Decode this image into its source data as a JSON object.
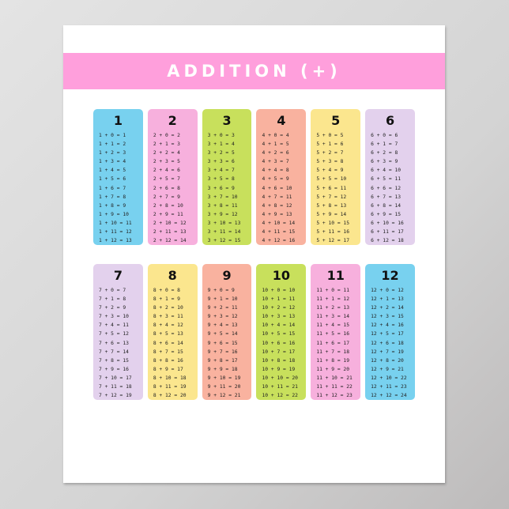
{
  "title": "ADDITION (+)",
  "colors": {
    "banner": "#ff9fdc",
    "cyan": "#78d1ef",
    "pink": "#f7b0dd",
    "lime": "#c8e05c",
    "salmon": "#f9b29f",
    "yellow": "#fbe68e",
    "lavender": "#e3d1ed"
  },
  "rows": [
    [
      {
        "number": "1",
        "color": "#78d1ef",
        "equations": [
          "1 + 0 = 1",
          "1 + 1 = 2",
          "1 + 2 = 3",
          "1 + 3 = 4",
          "1 + 4 = 5",
          "1 + 5 = 6",
          "1 + 6 = 7",
          "1 + 7 = 8",
          "1 + 8 = 9",
          "1 + 9 = 10",
          "1 + 10 = 11",
          "1 + 11 = 12",
          "1 + 12 = 13"
        ]
      },
      {
        "number": "2",
        "color": "#f7b0dd",
        "equations": [
          "2 + 0 = 2",
          "2 + 1 = 3",
          "2 + 2 = 4",
          "2 + 3 = 5",
          "2 + 4 = 6",
          "2 + 5 = 7",
          "2 + 6 = 8",
          "2 + 7 = 9",
          "2 + 8 = 10",
          "2 + 9 = 11",
          "2 + 10 = 12",
          "2 + 11 = 13",
          "2 + 12 = 14"
        ]
      },
      {
        "number": "3",
        "color": "#c8e05c",
        "equations": [
          "3 + 0 = 3",
          "3 + 1 = 4",
          "3 + 2 = 5",
          "3 + 3 = 6",
          "3 + 4 = 7",
          "3 + 5 = 8",
          "3 + 6 = 9",
          "3 + 7 = 10",
          "3 + 8 = 11",
          "3 + 9 = 12",
          "3 + 10 = 13",
          "3 + 11 = 14",
          "3 + 12 = 15"
        ]
      },
      {
        "number": "4",
        "color": "#f9b29f",
        "equations": [
          "4 + 0 = 4",
          "4 + 1 = 5",
          "4 + 2 = 6",
          "4 + 3 = 7",
          "4 + 4 = 8",
          "4 + 5 = 9",
          "4 + 6 = 10",
          "4 + 7 = 11",
          "4 + 8 = 12",
          "4 + 9 = 13",
          "4 + 10 = 14",
          "4 + 11 = 15",
          "4 + 12 = 16"
        ]
      },
      {
        "number": "5",
        "color": "#fbe68e",
        "equations": [
          "5 + 0 = 5",
          "5 + 1 = 6",
          "5 + 2 = 7",
          "5 + 3 = 8",
          "5 + 4 = 9",
          "5 + 5 = 10",
          "5 + 6 = 11",
          "5 + 7 = 12",
          "5 + 8 = 13",
          "5 + 9 = 14",
          "5 + 10 = 15",
          "5 + 11 = 16",
          "5 + 12 = 17"
        ]
      },
      {
        "number": "6",
        "color": "#e3d1ed",
        "equations": [
          "6 + 0 = 6",
          "6 + 1 = 7",
          "6 + 2 = 8",
          "6 + 3 = 9",
          "6 + 4 = 10",
          "6 + 5 = 11",
          "6 + 6 = 12",
          "6 + 7 = 13",
          "6 + 8 = 14",
          "6 + 9 = 15",
          "6 + 10 = 16",
          "6 + 11 = 17",
          "6 + 12 = 18"
        ]
      }
    ],
    [
      {
        "number": "7",
        "color": "#e3d1ed",
        "equations": [
          "7 + 0 = 7",
          "7 + 1 = 8",
          "7 + 2 = 9",
          "7 + 3 = 10",
          "7 + 4 = 11",
          "7 + 5 = 12",
          "7 + 6 = 13",
          "7 + 7 = 14",
          "7 + 8 = 15",
          "7 + 9 = 16",
          "7 + 10 = 17",
          "7 + 11 = 18",
          "7 + 12 = 19"
        ]
      },
      {
        "number": "8",
        "color": "#fbe68e",
        "equations": [
          "8 + 0 = 8",
          "8 + 1 = 9",
          "8 + 2 = 10",
          "8 + 3 = 11",
          "8 + 4 = 12",
          "8 + 5 = 13",
          "8 + 6 = 14",
          "8 + 7 = 15",
          "8 + 8 = 16",
          "8 + 9 = 17",
          "8 + 10 = 18",
          "8 + 11 = 19",
          "8 + 12 = 20"
        ]
      },
      {
        "number": "9",
        "color": "#f9b29f",
        "equations": [
          "9 + 0 = 9",
          "9 + 1 = 10",
          "9 + 2 = 11",
          "9 + 3 = 12",
          "9 + 4 = 13",
          "9 + 5 = 14",
          "9 + 6 = 15",
          "9 + 7 = 16",
          "9 + 8 = 17",
          "9 + 9 = 18",
          "9 + 10 = 19",
          "9 + 11 = 20",
          "9 + 12 = 21"
        ]
      },
      {
        "number": "10",
        "color": "#c8e05c",
        "equations": [
          "10 + 0 = 10",
          "10 + 1 = 11",
          "10 + 2 = 12",
          "10 + 3 = 13",
          "10 + 4 = 14",
          "10 + 5 = 15",
          "10 + 6 = 16",
          "10 + 7 = 17",
          "10 + 8 = 18",
          "10 + 9 = 19",
          "10 + 10 = 20",
          "10 + 11 = 21",
          "10 + 12 = 22"
        ]
      },
      {
        "number": "11",
        "color": "#f7b0dd",
        "equations": [
          "11 + 0 = 11",
          "11 + 1 = 12",
          "11 + 2 = 13",
          "11 + 3 = 14",
          "11 + 4 = 15",
          "11 + 5 = 16",
          "11 + 6 = 17",
          "11 + 7 = 18",
          "11 + 8 = 19",
          "11 + 9 = 20",
          "11 + 10 = 21",
          "11 + 11 = 22",
          "11 + 12 = 23"
        ]
      },
      {
        "number": "12",
        "color": "#78d1ef",
        "equations": [
          "12 + 0 = 12",
          "12 + 1 = 13",
          "12 + 2 = 14",
          "12 + 3 = 15",
          "12 + 4 = 16",
          "12 + 5 = 17",
          "12 + 6 = 18",
          "12 + 7 = 19",
          "12 + 8 = 20",
          "12 + 9 = 21",
          "12 + 10 = 22",
          "12 + 11 = 23",
          "12 + 12 = 24"
        ]
      }
    ]
  ]
}
